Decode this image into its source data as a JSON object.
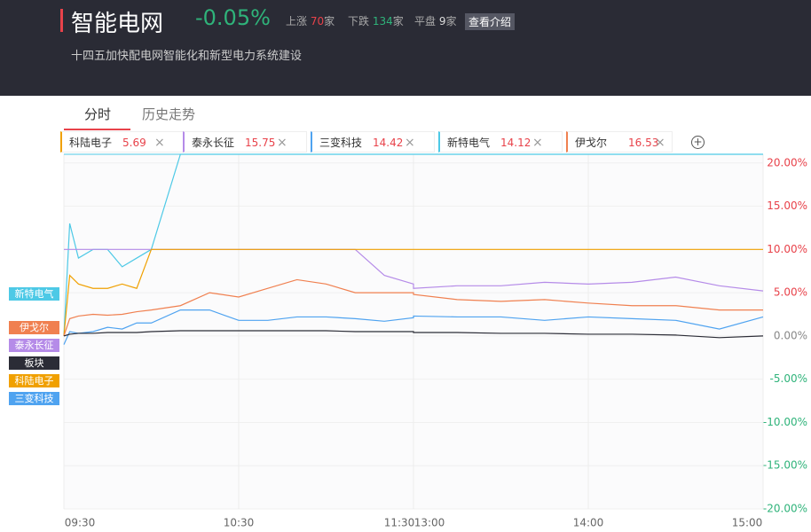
{
  "header": {
    "title": "智能电网",
    "change": "-0.05%",
    "up_label": "上涨",
    "up_count": 70,
    "down_label": "下跌",
    "down_count": 134,
    "flat_label": "平盘",
    "flat_count": 9,
    "unit": "家",
    "button": "查看介绍",
    "subtitle": "十四五加快配电网智能化和新型电力系统建设"
  },
  "tabs": [
    "分时",
    "历史走势"
  ],
  "stocks": [
    {
      "name": "科陆电子",
      "price": 5.69,
      "color": "#f0a000"
    },
    {
      "name": "泰永长征",
      "price": 15.75,
      "color": "#b58be8"
    },
    {
      "name": "三变科技",
      "price": 14.42,
      "color": "#4fa3f0"
    },
    {
      "name": "新特电气",
      "price": 14.12,
      "color": "#4dc9e6"
    },
    {
      "name": "伊戈尔",
      "price": 16.53,
      "color": "#f08050"
    }
  ],
  "left_tags": [
    {
      "label": "新特电气",
      "color": "#4dc9e6"
    },
    {
      "label": "伊戈尔",
      "color": "#f08050"
    },
    {
      "label": "泰永长征",
      "color": "#b58be8"
    },
    {
      "label": "板块",
      "color": "#2b2c36"
    },
    {
      "label": "科陆电子",
      "color": "#f0a000"
    },
    {
      "label": "三变科技",
      "color": "#4fa3f0"
    }
  ],
  "chart_data": {
    "type": "line",
    "x": [
      "09:30",
      "09:32",
      "09:35",
      "09:40",
      "09:45",
      "09:50",
      "09:55",
      "10:00",
      "10:10",
      "10:20",
      "10:30",
      "10:40",
      "10:50",
      "11:00",
      "11:10",
      "11:20",
      "11:30",
      "13:00",
      "13:15",
      "13:30",
      "13:45",
      "14:00",
      "14:15",
      "14:30",
      "14:45",
      "15:00"
    ],
    "xticks": [
      "09:30",
      "10:30",
      "11:30",
      "13:00",
      "14:00",
      "15:00"
    ],
    "ylim": [
      -20,
      21
    ],
    "yticks": [
      {
        "value": 20,
        "label": "20.00%"
      },
      {
        "value": 15,
        "label": "15.00%"
      },
      {
        "value": 10,
        "label": "10.00%"
      },
      {
        "value": 5,
        "label": "5.00%"
      },
      {
        "value": 0,
        "label": "0.00%"
      },
      {
        "value": -5,
        "label": "-5.00%"
      },
      {
        "value": -10,
        "label": "-10.00%"
      },
      {
        "value": -15,
        "label": "-15.00%"
      },
      {
        "value": -20,
        "label": "-20.00%"
      }
    ],
    "grid": true,
    "series": [
      {
        "name": "新特电气",
        "color": "#4dc9e6",
        "values": [
          0,
          13,
          9,
          10,
          10,
          8,
          9,
          10,
          21,
          21,
          21,
          21,
          21,
          21,
          21,
          21,
          21,
          21,
          21,
          21,
          21,
          21,
          21,
          21,
          21,
          21
        ]
      },
      {
        "name": "泰永长征",
        "color": "#b58be8",
        "values": [
          10,
          10,
          10,
          10,
          10,
          10,
          10,
          10,
          10,
          10,
          10,
          10,
          10,
          10,
          10,
          7,
          6,
          5.5,
          5.8,
          5.8,
          6.2,
          6,
          6.2,
          6.8,
          5.8,
          5.2
        ]
      },
      {
        "name": "科陆电子",
        "color": "#f0a000",
        "values": [
          0,
          7,
          6,
          5.5,
          5.5,
          6,
          5.5,
          10,
          10,
          10,
          10,
          10,
          10,
          10,
          10,
          10,
          10,
          10,
          10,
          10,
          10,
          10,
          10,
          10,
          10,
          10
        ]
      },
      {
        "name": "伊戈尔",
        "color": "#f08050",
        "values": [
          0,
          2,
          2.3,
          2.5,
          2.4,
          2.5,
          2.8,
          3,
          3.5,
          5,
          4.5,
          5.5,
          6.5,
          6,
          5,
          5,
          5,
          4.8,
          4.2,
          4,
          4.2,
          3.8,
          3.5,
          3.5,
          3,
          3
        ]
      },
      {
        "name": "三变科技",
        "color": "#4fa3f0",
        "values": [
          -1,
          0.5,
          0.3,
          0.5,
          1,
          0.8,
          1.5,
          1.5,
          3,
          3,
          1.8,
          1.8,
          2.2,
          2.2,
          2,
          1.7,
          2.1,
          2.3,
          2.2,
          2.2,
          1.8,
          2.2,
          2,
          1.8,
          0.8,
          2.2
        ]
      },
      {
        "name": "板块",
        "color": "#2b2c36",
        "values": [
          0,
          0.2,
          0.3,
          0.3,
          0.4,
          0.4,
          0.4,
          0.5,
          0.6,
          0.6,
          0.6,
          0.6,
          0.6,
          0.6,
          0.5,
          0.5,
          0.5,
          0.4,
          0.4,
          0.3,
          0.3,
          0.2,
          0.2,
          0.1,
          -0.2,
          0
        ]
      }
    ]
  }
}
